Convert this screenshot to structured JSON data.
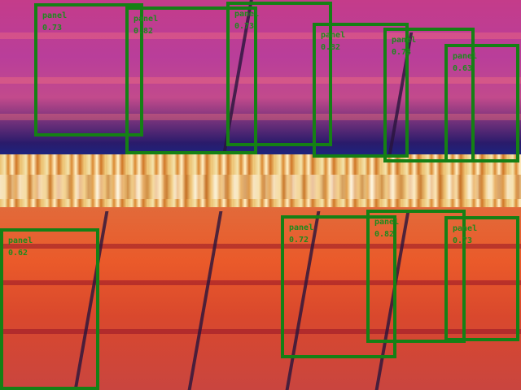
{
  "detections": [
    {
      "label": "panel",
      "score": "0.73"
    },
    {
      "label": "panel",
      "score": "0.82"
    },
    {
      "label": "panel",
      "score": "0.73"
    },
    {
      "label": "panel",
      "score": "0.82"
    },
    {
      "label": "panel",
      "score": "0.73"
    },
    {
      "label": "panel",
      "score": "0.63"
    },
    {
      "label": "panel",
      "score": "0.62"
    },
    {
      "label": "panel",
      "score": "0.72"
    },
    {
      "label": "panel",
      "score": "0.82"
    },
    {
      "label": "panel",
      "score": "0.73"
    }
  ],
  "colors": {
    "box": "#158015"
  }
}
